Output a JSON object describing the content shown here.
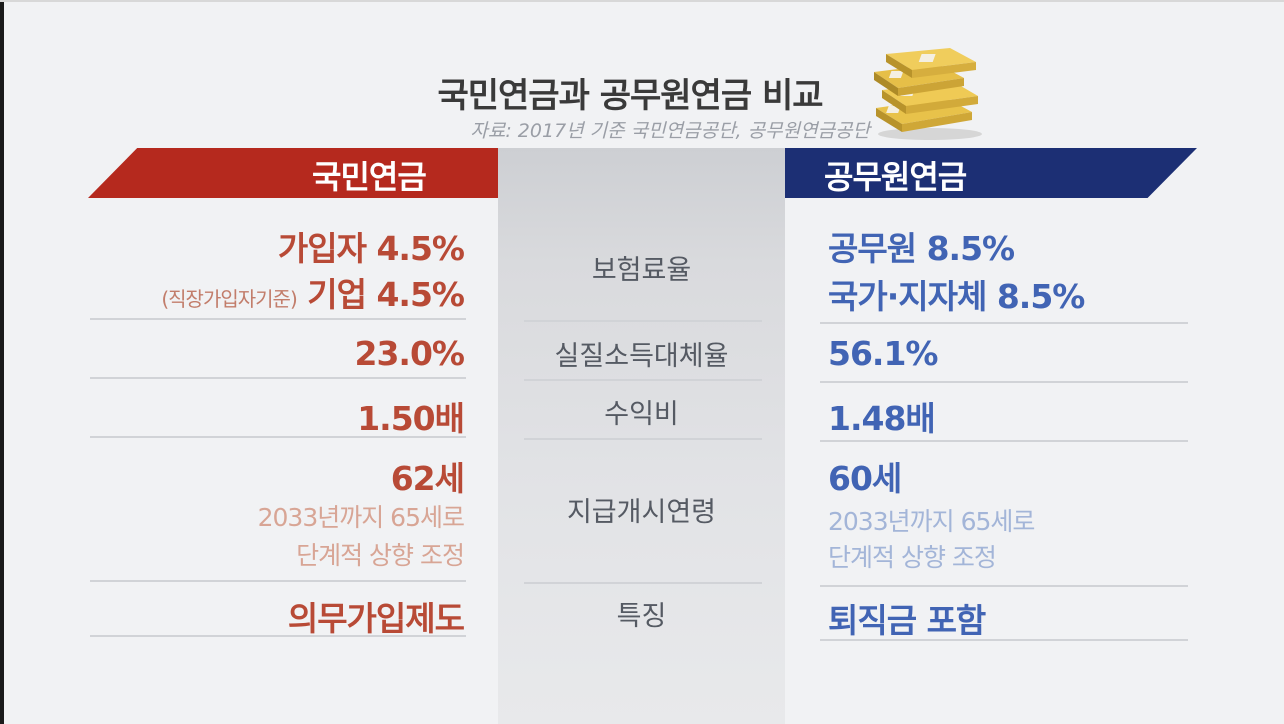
{
  "title": "국민연금과 공무원연금 비교",
  "source": "자료: 2017년 기준 국민연금공단, 공무원연금공단",
  "headers": {
    "left": "국민연금",
    "right": "공무원연금"
  },
  "rows": [
    {
      "label": "보험료율",
      "left": {
        "line1": "가입자 4.5%",
        "line2_note": "(직장가입자기준)",
        "line2": "기업 4.5%"
      },
      "right": {
        "line1": "공무원 8.5%",
        "line2": "국가·지자체 8.5%"
      }
    },
    {
      "label": "실질소득대체율",
      "left": {
        "value": "23.0%"
      },
      "right": {
        "value": "56.1%"
      }
    },
    {
      "label": "수익비",
      "left": {
        "value": "1.50배"
      },
      "right": {
        "value": "1.48배"
      }
    },
    {
      "label": "지급개시연령",
      "left": {
        "value": "62세",
        "sub1": "2033년까지 65세로",
        "sub2": "단계적 상향 조정"
      },
      "right": {
        "value": "60세",
        "sub1": "2033년까지 65세로",
        "sub2": "단계적 상향 조정"
      }
    },
    {
      "label": "특징",
      "left": {
        "value": "의무가입제도"
      },
      "right": {
        "value": "퇴직금 포함"
      }
    }
  ],
  "colors": {
    "left_banner": "#b5291e",
    "right_banner": "#1c2f74",
    "left_text": "#b84a36",
    "right_text": "#4164b4"
  },
  "icons": {
    "money": "money-stack-icon"
  }
}
